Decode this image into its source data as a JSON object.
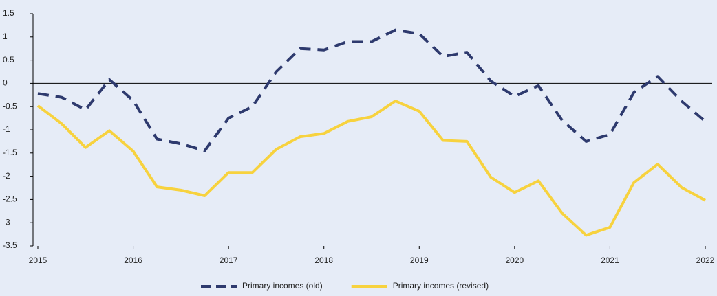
{
  "chart_data": {
    "type": "line",
    "x": [
      2015,
      2015.25,
      2015.5,
      2015.75,
      2016,
      2016.25,
      2016.5,
      2016.75,
      2017,
      2017.25,
      2017.5,
      2017.75,
      2018,
      2018.25,
      2018.5,
      2018.75,
      2019,
      2019.25,
      2019.5,
      2019.75,
      2020,
      2020.25,
      2020.5,
      2020.75,
      2021,
      2021.25,
      2021.5,
      2021.75,
      2022
    ],
    "series": [
      {
        "name": "Primary incomes (old)",
        "color": "#2e3a6e",
        "dashed": true,
        "values": [
          -0.22,
          -0.3,
          -0.57,
          0.08,
          -0.37,
          -1.2,
          -1.3,
          -1.45,
          -0.75,
          -0.5,
          0.25,
          0.75,
          0.72,
          0.9,
          0.9,
          1.15,
          1.07,
          0.58,
          0.67,
          0.05,
          -0.28,
          -0.05,
          -0.8,
          -1.25,
          -1.1,
          -0.2,
          0.15,
          -0.38,
          -0.82
        ]
      },
      {
        "name": "Primary incomes (revised)",
        "color": "#f7d23e",
        "dashed": false,
        "values": [
          -0.48,
          -0.87,
          -1.38,
          -1.02,
          -1.46,
          -2.23,
          -2.3,
          -2.42,
          -1.92,
          -1.92,
          -1.42,
          -1.15,
          -1.08,
          -0.82,
          -0.72,
          -0.38,
          -0.6,
          -1.23,
          -1.25,
          -2.02,
          -2.35,
          -2.1,
          -2.8,
          -3.27,
          -3.1,
          -2.14,
          -1.74,
          -2.24,
          -2.52
        ]
      }
    ],
    "xlim": [
      2015,
      2022
    ],
    "xticks": [
      2015,
      2016,
      2017,
      2018,
      2019,
      2020,
      2021,
      2022
    ],
    "ylim": [
      -3.5,
      1.5
    ],
    "yticks": [
      1.5,
      1,
      0.5,
      0,
      -0.5,
      -1,
      -1.5,
      -2,
      -2.5,
      -3,
      -3.5
    ],
    "legend": "bottom"
  }
}
